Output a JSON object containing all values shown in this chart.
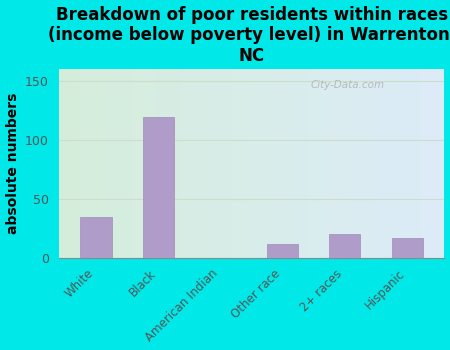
{
  "categories": [
    "White",
    "Black",
    "American Indian",
    "Other race",
    "2+ races",
    "Hispanic"
  ],
  "values": [
    35,
    120,
    0,
    12,
    20,
    17
  ],
  "bar_color": "#B09CC8",
  "bar_edgecolor": "#A08CB8",
  "title": "Breakdown of poor residents within races\n(income below poverty level) in Warrenton,\nNC",
  "ylabel": "absolute numbers",
  "ylim": [
    0,
    160
  ],
  "yticks": [
    0,
    50,
    100,
    150
  ],
  "background_color": "#00E8E8",
  "plot_bg_left": "#d4edda",
  "plot_bg_right": "#ddeeff",
  "watermark": "City-Data.com",
  "title_fontsize": 12,
  "ylabel_fontsize": 10,
  "tick_label_color": "#555555",
  "grid_color": "#ccddcc"
}
